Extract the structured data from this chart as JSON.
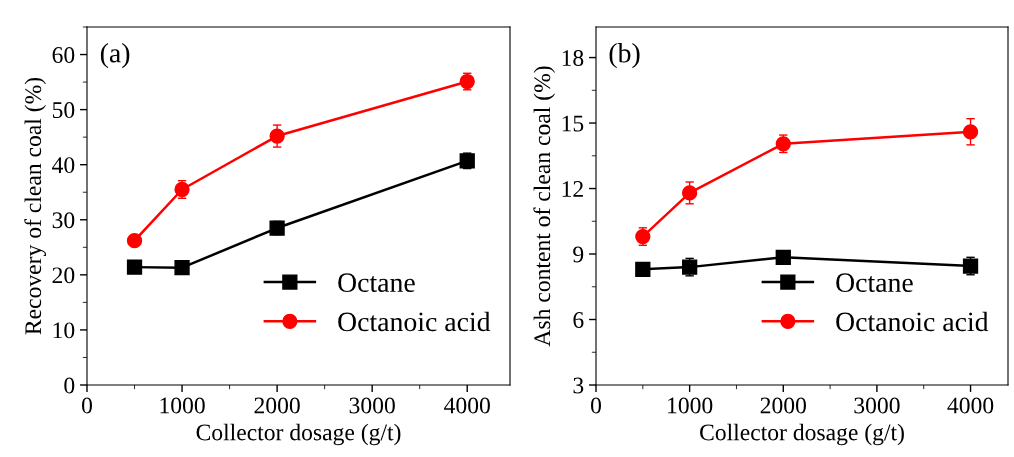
{
  "chart_data": [
    {
      "type": "line",
      "annotations": [
        "(a)"
      ],
      "xlabel": "Collector dosage (g/t)",
      "ylabel": "Recovery of clean coal (%)",
      "x": [
        500,
        1000,
        2000,
        4000
      ],
      "xlim": [
        0,
        4450
      ],
      "xticks": [
        0,
        1000,
        2000,
        3000,
        4000
      ],
      "ylim": [
        0,
        65
      ],
      "yticks": [
        0,
        10,
        20,
        30,
        40,
        50,
        60
      ],
      "legend": "bottom right",
      "grid": false,
      "series": [
        {
          "name": "Octane",
          "color": "#000000",
          "marker": "square",
          "values": [
            21.4,
            21.3,
            28.5,
            40.7
          ],
          "errors": [
            0.8,
            0.8,
            1.2,
            1.4
          ]
        },
        {
          "name": "Octanoic acid",
          "color": "#ff0000",
          "marker": "circle",
          "values": [
            26.2,
            35.5,
            45.2,
            55.1
          ],
          "errors": [
            1.0,
            1.6,
            2.0,
            1.5
          ]
        }
      ]
    },
    {
      "type": "line",
      "annotations": [
        "(b)"
      ],
      "xlabel": "Collector dosage (g/t)",
      "ylabel": "Ash content of clean coal (%)",
      "x": [
        500,
        1000,
        2000,
        4000
      ],
      "xlim": [
        0,
        4400
      ],
      "xticks": [
        0,
        1000,
        2000,
        3000,
        4000
      ],
      "ylim": [
        3,
        19.4
      ],
      "yticks": [
        3,
        6,
        9,
        12,
        15,
        18
      ],
      "legend": "bottom right",
      "grid": false,
      "series": [
        {
          "name": "Octane",
          "color": "#000000",
          "marker": "square",
          "values": [
            8.3,
            8.4,
            8.85,
            8.45
          ],
          "errors": [
            0.3,
            0.4,
            0.25,
            0.4
          ]
        },
        {
          "name": "Octanoic acid",
          "color": "#ff0000",
          "marker": "circle",
          "values": [
            9.8,
            11.8,
            14.05,
            14.6
          ],
          "errors": [
            0.4,
            0.5,
            0.4,
            0.6
          ]
        }
      ]
    }
  ]
}
